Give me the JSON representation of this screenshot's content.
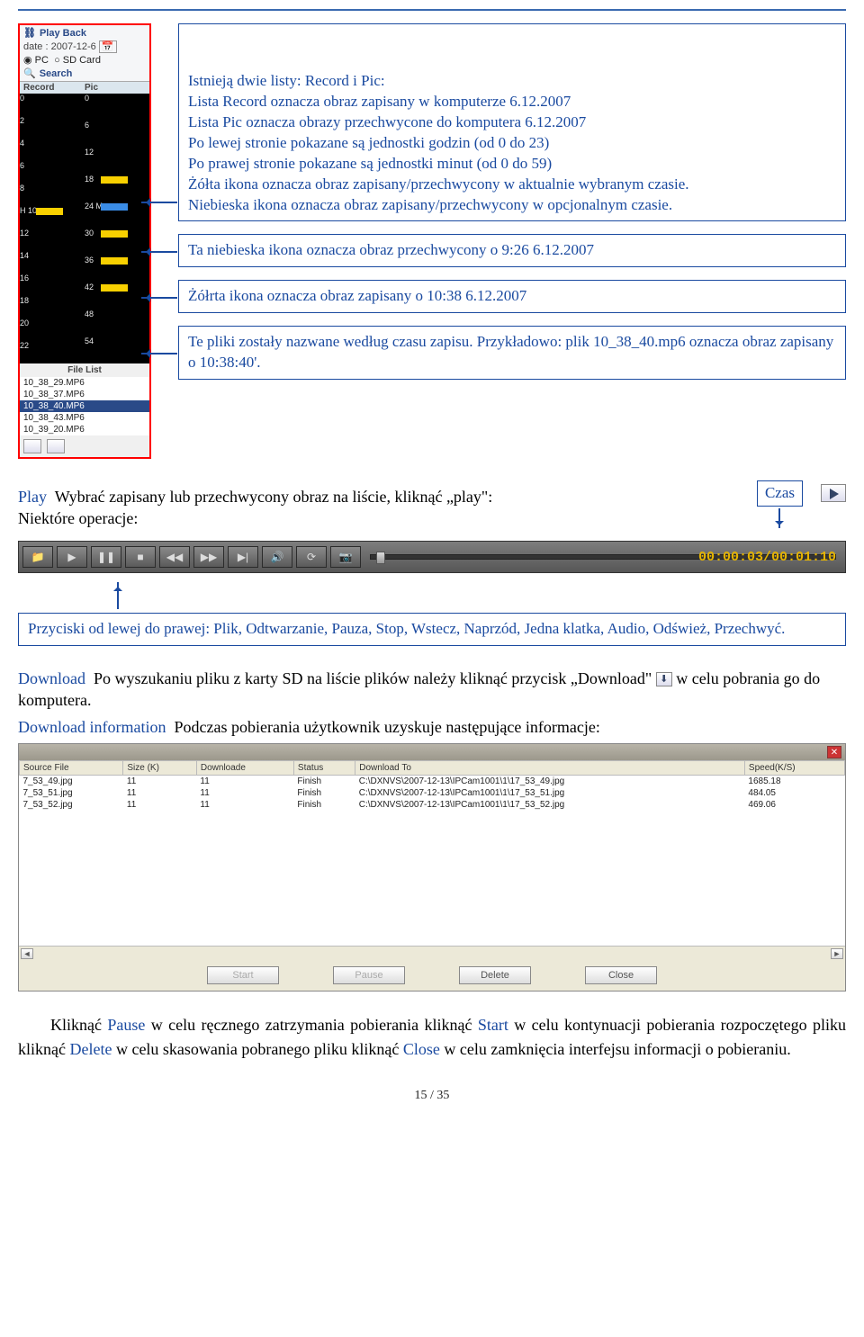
{
  "sidebar": {
    "play_back": "Play Back",
    "date_label": "date :",
    "date_value": "2007-12-6",
    "radio_pc": "PC",
    "radio_sd": "SD Card",
    "search": "Search",
    "record_hdr": "Record",
    "pic_hdr": "Pic",
    "hour_ticks": [
      "0",
      "2",
      "4",
      "6",
      "8",
      "H 10",
      "12",
      "14",
      "16",
      "18",
      "20",
      "22"
    ],
    "min_ticks": [
      "0",
      "6",
      "12",
      "18",
      "24 M",
      "30",
      "36",
      "42",
      "48",
      "54"
    ],
    "file_list_hdr": "File List",
    "files": [
      "10_38_29.MP6",
      "10_38_37.MP6",
      "10_38_40.MP6",
      "10_38_43.MP6",
      "10_39_20.MP6"
    ],
    "selected_file_index": 2
  },
  "callouts": {
    "main": "Istnieją dwie listy: Record i Pic:\nLista Record oznacza obraz zapisany w komputerze 6.12.2007\nLista Pic oznacza obrazy przechwycone do komputera 6.12.2007\nPo lewej stronie pokazane są jednostki godzin (od 0 do 23)\nPo prawej stronie pokazane są jednostki minut (od 0 do 59)\nŻółta ikona oznacza obraz zapisany/przechwycony w aktualnie wybranym czasie.\nNiebieska ikona oznacza obraz zapisany/przechwycony w opcjonalnym czasie.",
    "blue_icon": "Ta niebieska ikona oznacza obraz przechwycony o 9:26 6.12.2007",
    "yellow_icon": "Żółrta ikona oznacza obraz zapisany o 10:38 6.12.2007",
    "files_note": "Te pliki zostały nazwane według czasu zapisu. Przykładowo: plik 10_38_40.mp6 oznacza obraz zapisany o 10:38:40'."
  },
  "play_section": {
    "label": "Play",
    "text_after": "Wybrać zapisany lub przechwycony obraz na liście, kliknąć „play\":",
    "ops_label": "Niektóre operacje:",
    "czas_label": "Czas",
    "timecode": "00:00:03/00:01:10",
    "buttons_callout": "Przyciski od lewej do prawej: Plik, Odtwarzanie, Pauza, Stop, Wstecz, Naprzód, Jedna klatka, Audio, Odśwież, Przechwyć."
  },
  "download_section": {
    "dl_label": "Download",
    "dl_text": "Po wyszukaniu pliku z karty SD na liście plików należy kliknąć przycisk „Download\"",
    "dl_text2": "w celu pobrania go do komputera.",
    "dl_info_label": "Download information",
    "dl_info_text": "Podczas pobierania użytkownik uzyskuje następujące informacje:"
  },
  "download_table": {
    "headers": [
      "Source File",
      "Size (K)",
      "Downloade",
      "Status",
      "Download To",
      "Speed(K/S)"
    ],
    "rows": [
      [
        "7_53_49.jpg",
        "11",
        "11",
        "Finish",
        "C:\\DXNVS\\2007-12-13\\IPCam1001\\1\\17_53_49.jpg",
        "1685.18"
      ],
      [
        "7_53_51.jpg",
        "11",
        "11",
        "Finish",
        "C:\\DXNVS\\2007-12-13\\IPCam1001\\1\\17_53_51.jpg",
        "484.05"
      ],
      [
        "7_53_52.jpg",
        "11",
        "11",
        "Finish",
        "C:\\DXNVS\\2007-12-13\\IPCam1001\\1\\17_53_52.jpg",
        "469.06"
      ]
    ],
    "buttons": [
      "Start",
      "Pause",
      "Delete",
      "Close"
    ]
  },
  "final": {
    "text_parts": [
      {
        "t": "Kliknąć ",
        "c": "black"
      },
      {
        "t": "Pause",
        "c": "blue"
      },
      {
        "t": " w celu ręcznego zatrzymania pobierania kliknąć ",
        "c": "black"
      },
      {
        "t": "Start",
        "c": "blue"
      },
      {
        "t": " w celu kontynuacji pobierania rozpoczętego pliku kliknąć ",
        "c": "black"
      },
      {
        "t": "Delete",
        "c": "blue"
      },
      {
        "t": " w celu skasowania pobranego pliku kliknąć ",
        "c": "black"
      },
      {
        "t": "Close",
        "c": "blue"
      },
      {
        "t": " w celu zamknięcia interfejsu informacji o pobieraniu.",
        "c": "black"
      }
    ]
  },
  "page_number": "15 / 35"
}
